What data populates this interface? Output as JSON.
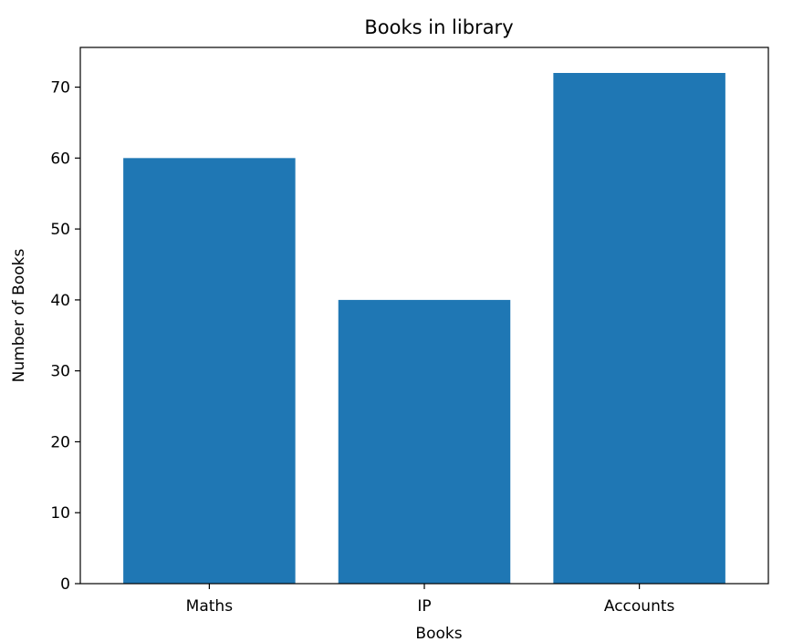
{
  "chart_data": {
    "type": "bar",
    "title": "Books in library",
    "xlabel": "Books",
    "ylabel": "Number of Books",
    "categories": [
      "Maths",
      "IP",
      "Accounts"
    ],
    "values": [
      60,
      40,
      72
    ],
    "ylim": [
      0,
      75.6
    ],
    "yticks": [
      0,
      10,
      20,
      30,
      40,
      50,
      60,
      70
    ],
    "grid": false,
    "legend": "none",
    "bar_color": "#1f77b4"
  }
}
